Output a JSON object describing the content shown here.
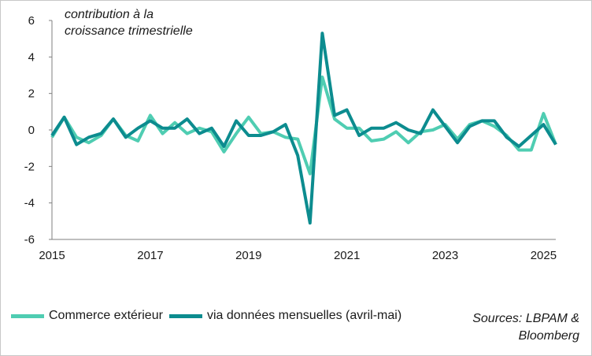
{
  "chart_data": {
    "type": "line",
    "subtitle": [
      "contribution à la",
      "croissance trimestrielle"
    ],
    "xlim": [
      2015,
      2025.25
    ],
    "ylim": [
      -6,
      6
    ],
    "yticks": [
      6,
      4,
      2,
      0,
      -2,
      -4,
      -6
    ],
    "xticks": [
      2015,
      2017,
      2019,
      2021,
      2023,
      2025
    ],
    "legend_position": "bottom",
    "series": [
      {
        "name": "Commerce extérieur",
        "color": "#4fcdb2",
        "x": [
          2015,
          2015.25,
          2015.5,
          2015.75,
          2016,
          2016.25,
          2016.5,
          2016.75,
          2017,
          2017.25,
          2017.5,
          2017.75,
          2018,
          2018.25,
          2018.5,
          2018.75,
          2019,
          2019.25,
          2019.5,
          2019.75,
          2020,
          2020.25,
          2020.5,
          2020.75,
          2021,
          2021.25,
          2021.5,
          2021.75,
          2022,
          2022.25,
          2022.5,
          2022.75,
          2023,
          2023.25,
          2023.5,
          2023.75,
          2024,
          2024.25,
          2024.5,
          2024.75,
          2025,
          2025.25
        ],
        "values": [
          -0.4,
          0.7,
          -0.4,
          -0.7,
          -0.3,
          0.6,
          -0.3,
          -0.6,
          0.8,
          -0.2,
          0.4,
          -0.2,
          0.1,
          -0.1,
          -1.2,
          -0.2,
          0.7,
          -0.2,
          -0.1,
          -0.4,
          -0.5,
          -2.4,
          2.9,
          0.6,
          0.1,
          0.1,
          -0.6,
          -0.5,
          -0.1,
          -0.7,
          -0.1,
          0.0,
          0.3,
          -0.5,
          0.3,
          0.5,
          0.2,
          -0.3,
          -1.1,
          -1.1,
          0.9,
          -0.8
        ]
      },
      {
        "name": "via données mensuelles (avril-mai)",
        "color": "#0c8c8f",
        "x": [
          2015,
          2015.25,
          2015.5,
          2015.75,
          2016,
          2016.25,
          2016.5,
          2016.75,
          2017,
          2017.25,
          2017.5,
          2017.75,
          2018,
          2018.25,
          2018.5,
          2018.75,
          2019,
          2019.25,
          2019.5,
          2019.75,
          2020,
          2020.25,
          2020.5,
          2020.75,
          2021,
          2021.25,
          2021.5,
          2021.75,
          2022,
          2022.25,
          2022.5,
          2022.75,
          2023,
          2023.25,
          2023.5,
          2023.75,
          2024,
          2024.25,
          2024.5,
          2024.75,
          2025,
          2025.25
        ],
        "values": [
          -0.3,
          0.7,
          -0.8,
          -0.4,
          -0.2,
          0.6,
          -0.4,
          0.1,
          0.5,
          0.1,
          0.1,
          0.6,
          -0.2,
          0.1,
          -0.9,
          0.5,
          -0.3,
          -0.3,
          -0.1,
          0.3,
          -1.4,
          -5.1,
          5.3,
          0.8,
          1.1,
          -0.3,
          0.1,
          0.1,
          0.4,
          0.0,
          -0.2,
          1.1,
          0.2,
          -0.7,
          0.2,
          0.5,
          0.5,
          -0.4,
          -0.9,
          -0.3,
          0.3,
          -0.8
        ]
      }
    ]
  },
  "sources_label": [
    "Sources: LBPAM &",
    "Bloomberg"
  ]
}
